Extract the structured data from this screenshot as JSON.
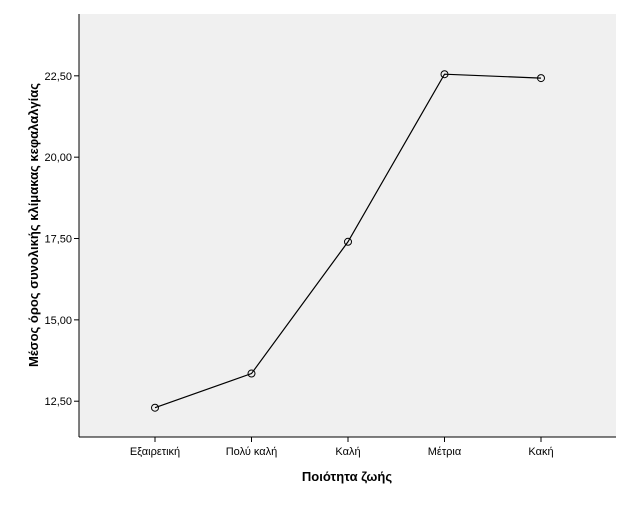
{
  "chart_data": {
    "type": "line",
    "title": "",
    "xlabel": "Ποιότητα ζωής",
    "ylabel": "Μέσος όρος συνολικής κλίμακας κεφαλαλγίας",
    "categories": [
      "Εξαιρετική",
      "Πολύ καλή",
      "Καλή",
      "Μέτρια",
      "Κακή"
    ],
    "series": [
      {
        "values": [
          12.3,
          13.35,
          17.4,
          22.55,
          22.43
        ]
      }
    ],
    "ylim": [
      11.4,
      24.4
    ],
    "yticks": [
      12.5,
      15.0,
      17.5,
      20.0,
      22.5
    ],
    "ytick_labels": [
      "12,50",
      "15,00",
      "17,50",
      "20,00",
      "22,50"
    ],
    "grid": false,
    "legend": "none",
    "colors": {
      "plot_background": "#f0f0f0",
      "page_background": "#ffffff",
      "line": "#000000",
      "marker_stroke": "#000000",
      "axis": "#000000",
      "text": "#000000"
    }
  }
}
